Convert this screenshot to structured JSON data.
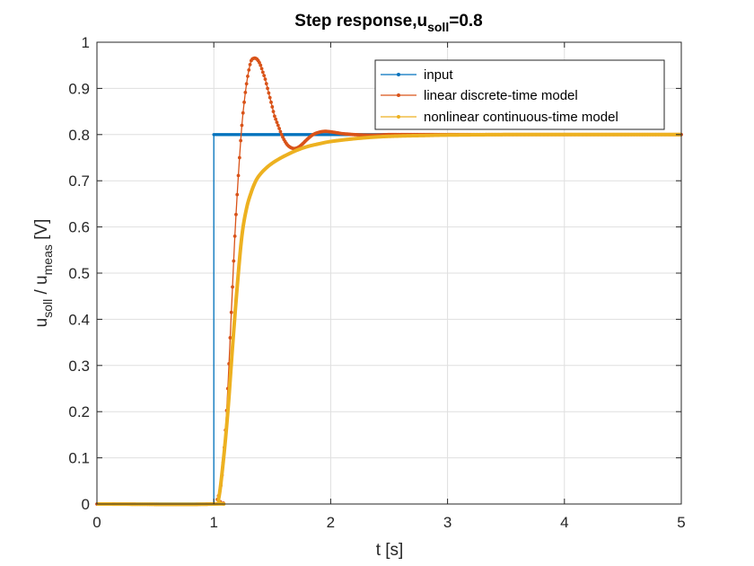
{
  "chart_data": {
    "type": "line",
    "title": {
      "main": "Step response,u",
      "sub": "soll",
      "tail": "=0.8"
    },
    "xlabel": "t [s]",
    "ylabel": {
      "p1": "u",
      "s1": "soll",
      "p2": " / u",
      "s2": "meas",
      "p3": " [V]"
    },
    "xlim": [
      0,
      5
    ],
    "ylim": [
      0,
      1
    ],
    "xticks": [
      0,
      1,
      2,
      3,
      4,
      5
    ],
    "yticks": [
      0,
      0.1,
      0.2,
      0.3,
      0.4,
      0.5,
      0.6,
      0.7,
      0.8,
      0.9,
      1
    ],
    "grid": true,
    "legend_position": "top-right",
    "series": [
      {
        "name": "input",
        "color": "#0072BD",
        "step": {
          "t0": 1.0,
          "low": 0,
          "high": 0.8,
          "dt": 0.01
        },
        "x": [
          0,
          1,
          1,
          5
        ],
        "y": [
          0,
          0,
          0.8,
          0.8
        ]
      },
      {
        "name": "linear discrete-time model",
        "color": "#D95319",
        "x": [
          0,
          1.0,
          1.03,
          1.06,
          1.08,
          1.1,
          1.12,
          1.14,
          1.16,
          1.18,
          1.2,
          1.22,
          1.24,
          1.26,
          1.28,
          1.3,
          1.32,
          1.34,
          1.36,
          1.38,
          1.4,
          1.42,
          1.44,
          1.46,
          1.48,
          1.5,
          1.52,
          1.55,
          1.58,
          1.61,
          1.64,
          1.68,
          1.72,
          1.76,
          1.8,
          1.85,
          1.9,
          1.95,
          2.0,
          2.05,
          2.1,
          2.15,
          2.2,
          2.3,
          2.4,
          2.5,
          2.6,
          2.8,
          3.0,
          3.5,
          4.0,
          4.5,
          5.0
        ],
        "y": [
          0,
          0,
          0.01,
          0.04,
          0.09,
          0.16,
          0.25,
          0.36,
          0.47,
          0.58,
          0.67,
          0.75,
          0.82,
          0.87,
          0.91,
          0.94,
          0.96,
          0.965,
          0.965,
          0.96,
          0.95,
          0.935,
          0.92,
          0.9,
          0.88,
          0.86,
          0.84,
          0.82,
          0.8,
          0.785,
          0.775,
          0.77,
          0.772,
          0.78,
          0.79,
          0.8,
          0.805,
          0.807,
          0.806,
          0.804,
          0.802,
          0.801,
          0.8,
          0.799,
          0.799,
          0.8,
          0.8,
          0.8,
          0.8,
          0.8,
          0.8,
          0.8,
          0.8
        ]
      },
      {
        "name": "nonlinear continuous-time model",
        "color": "#EDB120",
        "x": [
          0,
          1.0,
          1.04,
          1.08,
          1.12,
          1.16,
          1.2,
          1.24,
          1.28,
          1.32,
          1.36,
          1.4,
          1.45,
          1.5,
          1.55,
          1.6,
          1.7,
          1.8,
          1.9,
          2.0,
          2.2,
          2.4,
          2.6,
          2.8,
          3.0,
          3.5,
          4.0,
          4.5,
          5.0
        ],
        "y": [
          0,
          0,
          0.01,
          0.09,
          0.2,
          0.34,
          0.47,
          0.58,
          0.64,
          0.675,
          0.7,
          0.715,
          0.728,
          0.738,
          0.746,
          0.753,
          0.765,
          0.774,
          0.78,
          0.785,
          0.791,
          0.795,
          0.797,
          0.798,
          0.799,
          0.8,
          0.8,
          0.8,
          0.8
        ]
      }
    ]
  }
}
